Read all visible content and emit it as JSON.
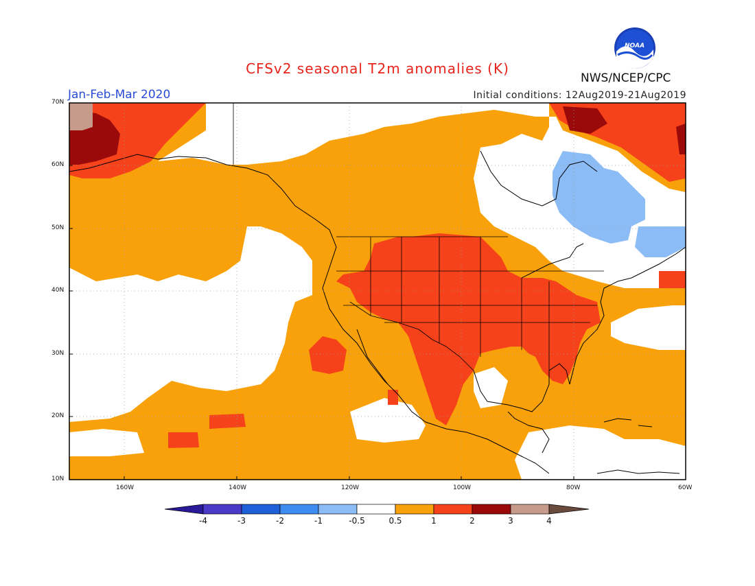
{
  "header": {
    "title": "CFSv2 seasonal T2m anomalies (K)",
    "season": "Jan-Feb-Mar 2020",
    "initial_conditions": "Initial conditions: 12Aug2019-21Aug2019",
    "agency": "NWS/NCEP/CPC",
    "logo_text": "NOAA"
  },
  "map": {
    "lat_labels": [
      "70N",
      "60N",
      "50N",
      "40N",
      "30N",
      "20N",
      "10N"
    ],
    "lon_labels": [
      "160W",
      "140W",
      "120W",
      "100W",
      "80W",
      "60W"
    ]
  },
  "colorbar": {
    "labels": [
      "-4",
      "-3",
      "-2",
      "-1",
      "-0.5",
      "0.5",
      "1",
      "2",
      "3",
      "4"
    ],
    "colors": [
      "#2a1a9a",
      "#4a3ac8",
      "#1e60d8",
      "#3f8cf0",
      "#8cbcf5",
      "#ffffff",
      "#f9a10a",
      "#f5421a",
      "#9b0a0a",
      "#c79b8b",
      "#6b4a3e"
    ]
  },
  "legend_colors": {
    "warm_05_1": "#f9a10a",
    "warm_1_2": "#f5421a",
    "warm_2_3": "#9b0a0a",
    "warm_3_4": "#c79b8b",
    "cool_05_1": "#8cbcf5"
  }
}
